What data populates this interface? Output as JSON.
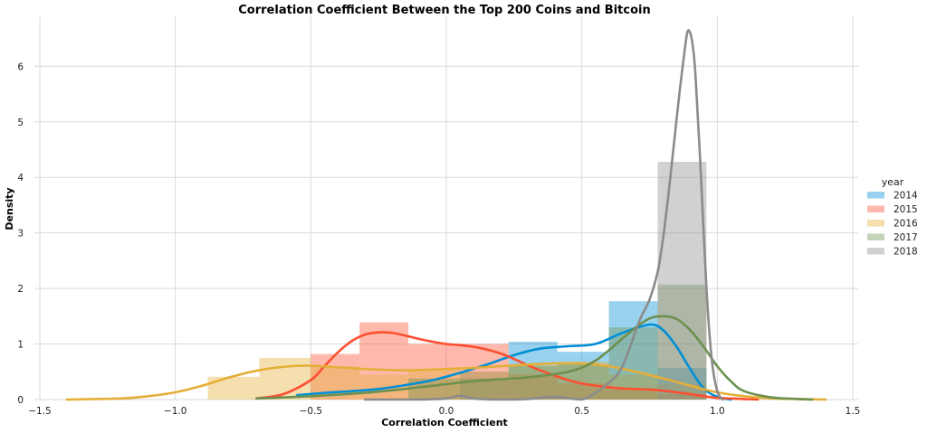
{
  "chart_data": {
    "type": "bar",
    "title": "Correlation Coefficient Between the Top 200 Coins and Bitcoin",
    "xlabel": "Correlation Coefficient",
    "ylabel": "Density",
    "xlim": [
      -1.52,
      1.52
    ],
    "ylim": [
      0,
      6.9
    ],
    "xticks": [
      -1.5,
      -1.0,
      -0.5,
      0.0,
      0.5,
      1.0,
      1.5
    ],
    "xtick_labels": [
      "−1.5",
      "−1.0",
      "−0.5",
      "0.0",
      "0.5",
      "1.0",
      "1.5"
    ],
    "yticks": [
      0,
      1,
      2,
      3,
      4,
      5,
      6
    ],
    "ytick_labels": [
      "0",
      "1",
      "2",
      "3",
      "4",
      "5",
      "6"
    ],
    "grid": true,
    "legend": {
      "title": "year",
      "placement": "center-right"
    },
    "series": [
      {
        "name": "2014",
        "color": "#008fd5",
        "histogram": [
          {
            "x0": 0.05,
            "x1": 0.23,
            "density": 0.5
          },
          {
            "x0": 0.23,
            "x1": 0.41,
            "density": 1.04
          },
          {
            "x0": 0.41,
            "x1": 0.6,
            "density": 0.86
          },
          {
            "x0": 0.6,
            "x1": 0.78,
            "density": 1.77
          },
          {
            "x0": 0.78,
            "x1": 0.96,
            "density": 0.57
          }
        ],
        "kde": {
          "x": [
            -0.55,
            -0.45,
            -0.35,
            -0.25,
            -0.15,
            -0.05,
            0.05,
            0.15,
            0.25,
            0.35,
            0.45,
            0.55,
            0.65,
            0.75,
            0.8,
            0.85,
            0.9,
            0.95,
            1.0,
            1.05
          ],
          "y": [
            0.08,
            0.12,
            0.15,
            0.19,
            0.26,
            0.35,
            0.48,
            0.63,
            0.8,
            0.92,
            0.96,
            1.0,
            1.2,
            1.35,
            1.25,
            0.95,
            0.55,
            0.2,
            0.05,
            0.0
          ]
        }
      },
      {
        "name": "2015",
        "color": "#fc4f30",
        "histogram": [
          {
            "x0": -0.5,
            "x1": -0.32,
            "density": 0.82
          },
          {
            "x0": -0.32,
            "x1": -0.14,
            "density": 1.39
          },
          {
            "x0": -0.14,
            "x1": 0.05,
            "density": 1.0
          },
          {
            "x0": 0.05,
            "x1": 0.23,
            "density": 1.0
          },
          {
            "x0": 0.23,
            "x1": 0.41,
            "density": 0.45
          },
          {
            "x0": 0.41,
            "x1": 0.6,
            "density": 0.29
          },
          {
            "x0": 0.6,
            "x1": 0.78,
            "density": 0.19
          },
          {
            "x0": 0.78,
            "x1": 0.96,
            "density": 0.1
          }
        ],
        "kde": {
          "x": [
            -0.7,
            -0.6,
            -0.5,
            -0.45,
            -0.4,
            -0.35,
            -0.3,
            -0.25,
            -0.2,
            -0.15,
            -0.1,
            -0.05,
            0.0,
            0.05,
            0.1,
            0.15,
            0.2,
            0.25,
            0.3,
            0.35,
            0.4,
            0.45,
            0.5,
            0.55,
            0.6,
            0.65,
            0.7,
            0.75,
            0.8,
            0.85,
            0.9,
            0.95,
            1.0,
            1.05,
            1.1,
            1.15
          ],
          "y": [
            0.02,
            0.1,
            0.35,
            0.6,
            0.85,
            1.05,
            1.17,
            1.21,
            1.2,
            1.15,
            1.09,
            1.04,
            1.0,
            0.98,
            0.95,
            0.9,
            0.83,
            0.73,
            0.62,
            0.52,
            0.43,
            0.35,
            0.29,
            0.25,
            0.22,
            0.2,
            0.19,
            0.18,
            0.16,
            0.13,
            0.1,
            0.06,
            0.03,
            0.02,
            0.01,
            0.0
          ]
        }
      },
      {
        "name": "2016",
        "color": "#e5ae38",
        "histogram": [
          {
            "x0": -0.88,
            "x1": -0.69,
            "density": 0.41
          },
          {
            "x0": -0.69,
            "x1": -0.5,
            "density": 0.75
          },
          {
            "x0": -0.5,
            "x1": -0.32,
            "density": 0.6
          },
          {
            "x0": -0.32,
            "x1": -0.14,
            "density": 0.45
          },
          {
            "x0": -0.14,
            "x1": 0.05,
            "density": 0.54
          },
          {
            "x0": 0.05,
            "x1": 0.23,
            "density": 0.5
          },
          {
            "x0": 0.23,
            "x1": 0.41,
            "density": 0.62
          },
          {
            "x0": 0.41,
            "x1": 0.6,
            "density": 0.68
          },
          {
            "x0": 0.6,
            "x1": 0.78,
            "density": 0.45
          },
          {
            "x0": 0.78,
            "x1": 0.96,
            "density": 0.28
          }
        ],
        "kde": {
          "x": [
            -1.4,
            -1.2,
            -1.1,
            -1.0,
            -0.9,
            -0.8,
            -0.7,
            -0.6,
            -0.5,
            -0.4,
            -0.3,
            -0.2,
            -0.1,
            0.0,
            0.1,
            0.2,
            0.3,
            0.4,
            0.5,
            0.6,
            0.7,
            0.8,
            0.9,
            1.0,
            1.1,
            1.2,
            1.3,
            1.4
          ],
          "y": [
            0.0,
            0.02,
            0.06,
            0.13,
            0.25,
            0.4,
            0.52,
            0.59,
            0.61,
            0.58,
            0.55,
            0.53,
            0.53,
            0.55,
            0.57,
            0.6,
            0.63,
            0.65,
            0.65,
            0.6,
            0.5,
            0.38,
            0.25,
            0.13,
            0.06,
            0.02,
            0.01,
            0.0
          ]
        }
      },
      {
        "name": "2017",
        "color": "#6d904f",
        "histogram": [
          {
            "x0": -0.14,
            "x1": 0.05,
            "density": 0.38
          },
          {
            "x0": 0.05,
            "x1": 0.23,
            "density": 0.38
          },
          {
            "x0": 0.23,
            "x1": 0.41,
            "density": 0.6
          },
          {
            "x0": 0.41,
            "x1": 0.6,
            "density": 0.63
          },
          {
            "x0": 0.6,
            "x1": 0.78,
            "density": 1.3
          },
          {
            "x0": 0.78,
            "x1": 0.96,
            "density": 2.07
          }
        ],
        "kde": {
          "x": [
            -0.7,
            -0.5,
            -0.3,
            -0.1,
            0.1,
            0.3,
            0.45,
            0.55,
            0.65,
            0.7,
            0.75,
            0.8,
            0.85,
            0.9,
            0.95,
            1.0,
            1.05,
            1.1,
            1.2,
            1.3,
            1.35
          ],
          "y": [
            0.02,
            0.06,
            0.12,
            0.22,
            0.33,
            0.4,
            0.5,
            0.7,
            1.1,
            1.3,
            1.46,
            1.5,
            1.45,
            1.25,
            0.95,
            0.6,
            0.33,
            0.15,
            0.04,
            0.01,
            0.0
          ]
        }
      },
      {
        "name": "2018",
        "color": "#8b8b8b",
        "histogram": [
          {
            "x0": 0.78,
            "x1": 0.96,
            "density": 4.28
          }
        ],
        "kde": {
          "x": [
            -0.3,
            -0.1,
            0.0,
            0.05,
            0.1,
            0.2,
            0.3,
            0.4,
            0.5,
            0.6,
            0.65,
            0.7,
            0.72,
            0.75,
            0.78,
            0.8,
            0.82,
            0.84,
            0.86,
            0.88,
            0.89,
            0.9,
            0.91,
            0.92,
            0.94,
            0.96,
            0.98,
            1.0,
            1.02
          ],
          "y": [
            0.0,
            0.0,
            0.02,
            0.07,
            0.02,
            0.0,
            0.01,
            0.05,
            0.0,
            0.3,
            0.6,
            1.25,
            1.5,
            1.8,
            2.3,
            2.9,
            3.7,
            4.6,
            5.5,
            6.3,
            6.62,
            6.6,
            6.35,
            5.8,
            4.0,
            2.0,
            0.7,
            0.15,
            0.0
          ]
        }
      }
    ]
  }
}
